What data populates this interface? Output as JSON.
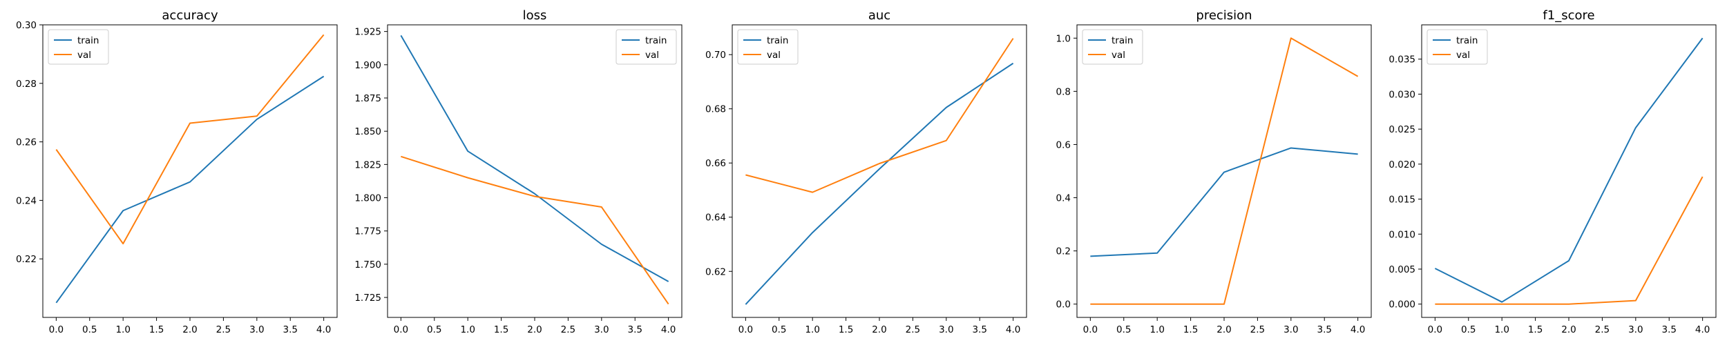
{
  "colors": {
    "train": "#1f77b4",
    "val": "#ff7f0e"
  },
  "chart_data": [
    {
      "type": "line",
      "title": "accuracy",
      "x": [
        0,
        1,
        2,
        3,
        4
      ],
      "xticks": [
        "0.0",
        "0.5",
        "1.0",
        "1.5",
        "2.0",
        "2.5",
        "3.0",
        "3.5",
        "4.0"
      ],
      "xlim": [
        -0.2,
        4.2
      ],
      "yticks": [
        0.22,
        0.24,
        0.26,
        0.28,
        0.3
      ],
      "ytick_labels": [
        "0.22",
        "0.24",
        "0.26",
        "0.28",
        "0.30"
      ],
      "ylim": [
        0.2,
        0.3
      ],
      "legend": "top-left",
      "series": [
        {
          "name": "train",
          "values": [
            0.205,
            0.2365,
            0.2463,
            0.2677,
            0.2824
          ]
        },
        {
          "name": "val",
          "values": [
            0.2574,
            0.2252,
            0.2664,
            0.2688,
            0.2966
          ]
        }
      ]
    },
    {
      "type": "line",
      "title": "loss",
      "x": [
        0,
        1,
        2,
        3,
        4
      ],
      "xticks": [
        "0.0",
        "0.5",
        "1.0",
        "1.5",
        "2.0",
        "2.5",
        "3.0",
        "3.5",
        "4.0"
      ],
      "xlim": [
        -0.2,
        4.2
      ],
      "yticks": [
        1.725,
        1.75,
        1.775,
        1.8,
        1.825,
        1.85,
        1.875,
        1.9,
        1.925
      ],
      "ytick_labels": [
        "1.725",
        "1.750",
        "1.775",
        "1.800",
        "1.825",
        "1.850",
        "1.875",
        "1.900",
        "1.925"
      ],
      "ylim": [
        1.71,
        1.93
      ],
      "legend": "top-right",
      "series": [
        {
          "name": "train",
          "values": [
            1.922,
            1.835,
            1.803,
            1.765,
            1.737
          ]
        },
        {
          "name": "val",
          "values": [
            1.831,
            1.815,
            1.801,
            1.793,
            1.72
          ]
        }
      ]
    },
    {
      "type": "line",
      "title": "auc",
      "x": [
        0,
        1,
        2,
        3,
        4
      ],
      "xticks": [
        "0.0",
        "0.5",
        "1.0",
        "1.5",
        "2.0",
        "2.5",
        "3.0",
        "3.5",
        "4.0"
      ],
      "xlim": [
        -0.2,
        4.2
      ],
      "yticks": [
        0.62,
        0.64,
        0.66,
        0.68,
        0.7
      ],
      "ytick_labels": [
        "0.62",
        "0.64",
        "0.66",
        "0.68",
        "0.70"
      ],
      "ylim": [
        0.603,
        0.711
      ],
      "legend": "top-left",
      "series": [
        {
          "name": "train",
          "values": [
            0.6078,
            0.6343,
            0.6578,
            0.6805,
            0.6968
          ]
        },
        {
          "name": "val",
          "values": [
            0.6556,
            0.6492,
            0.6598,
            0.6683,
            0.706
          ]
        }
      ]
    },
    {
      "type": "line",
      "title": "precision",
      "x": [
        0,
        1,
        2,
        3,
        4
      ],
      "xticks": [
        "0.0",
        "0.5",
        "1.0",
        "1.5",
        "2.0",
        "2.5",
        "3.0",
        "3.5",
        "4.0"
      ],
      "xlim": [
        -0.2,
        4.2
      ],
      "yticks": [
        0.0,
        0.2,
        0.4,
        0.6,
        0.8,
        1.0
      ],
      "ytick_labels": [
        "0.0",
        "0.2",
        "0.4",
        "0.6",
        "0.8",
        "1.0"
      ],
      "ylim": [
        -0.05,
        1.05
      ],
      "legend": "top-left",
      "series": [
        {
          "name": "train",
          "values": [
            0.18,
            0.192,
            0.496,
            0.587,
            0.564
          ]
        },
        {
          "name": "val",
          "values": [
            0.0,
            0.0,
            0.0,
            1.0,
            0.856
          ]
        }
      ]
    },
    {
      "type": "line",
      "title": "f1_score",
      "x": [
        0,
        1,
        2,
        3,
        4
      ],
      "xticks": [
        "0.0",
        "0.5",
        "1.0",
        "1.5",
        "2.0",
        "2.5",
        "3.0",
        "3.5",
        "4.0"
      ],
      "xlim": [
        -0.2,
        4.2
      ],
      "yticks": [
        0.0,
        0.005,
        0.01,
        0.015,
        0.02,
        0.025,
        0.03,
        0.035
      ],
      "ytick_labels": [
        "0.000",
        "0.005",
        "0.010",
        "0.015",
        "0.020",
        "0.025",
        "0.030",
        "0.035"
      ],
      "ylim": [
        -0.0019,
        0.0399
      ],
      "legend": "top-left",
      "series": [
        {
          "name": "train",
          "values": [
            0.0051,
            0.0003,
            0.0062,
            0.0252,
            0.038
          ]
        },
        {
          "name": "val",
          "values": [
            0.0,
            0.0,
            0.0,
            0.0005,
            0.0182
          ]
        }
      ]
    }
  ]
}
